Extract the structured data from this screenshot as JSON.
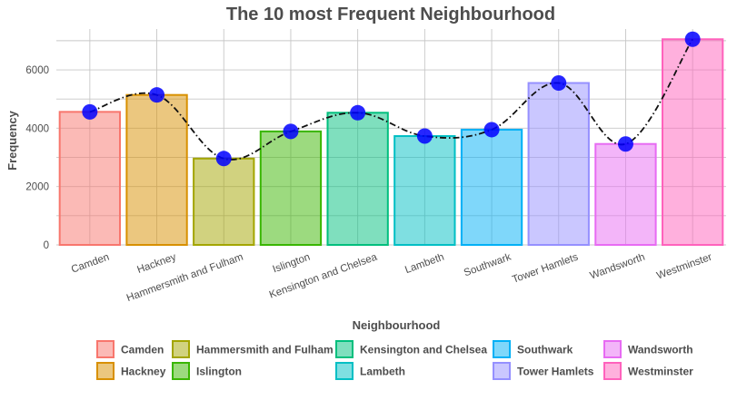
{
  "chart_data": {
    "type": "bar",
    "title": "The 10 most Frequent Neighbourhood",
    "xlabel": "Neighbourhood",
    "ylabel": "Frequency",
    "ylim": [
      0,
      7400
    ],
    "yticks": [
      0,
      2000,
      4000,
      6000
    ],
    "grid": true,
    "legend_position": "bottom",
    "categories": [
      "Camden",
      "Hackney",
      "Hammersmith and Fulham",
      "Islington",
      "Kensington and Chelsea",
      "Lambeth",
      "Southwark",
      "Tower Hamlets",
      "Wandsworth",
      "Westminster"
    ],
    "values": [
      4560,
      5140,
      2960,
      3890,
      4530,
      3730,
      3950,
      5550,
      3460,
      7050
    ],
    "colors": [
      "#F8766D",
      "#D89000",
      "#A3A500",
      "#39B600",
      "#00BF7D",
      "#00BFC4",
      "#00B0F6",
      "#9590FF",
      "#E76BF3",
      "#FF62BC"
    ],
    "point_color": "#0000ff",
    "line_style": "dotdash",
    "legend_order": [
      "Camden",
      "Hackney",
      "Hammersmith and Fulham",
      "Islington",
      "Kensington and Chelsea",
      "Lambeth",
      "Southwark",
      "Tower Hamlets",
      "Wandsworth",
      "Westminster"
    ]
  }
}
